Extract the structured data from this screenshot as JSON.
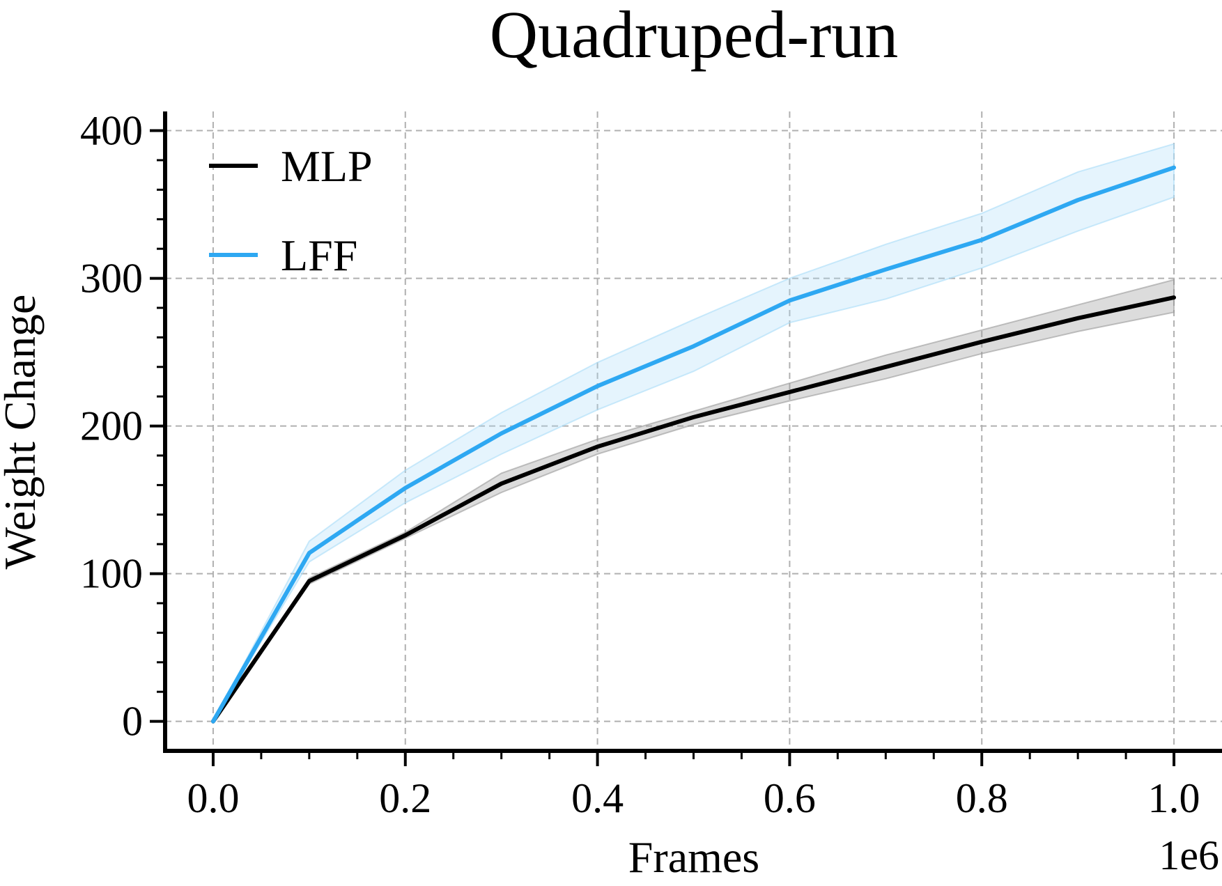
{
  "chart_data": {
    "type": "line",
    "title": "Quadruped-run",
    "xlabel": "Frames",
    "ylabel": "Weight Change",
    "x_offset_label": "1e6",
    "x": [
      0.0,
      0.1,
      0.2,
      0.3,
      0.4,
      0.5,
      0.6,
      0.7,
      0.8,
      0.9,
      1.0
    ],
    "xlim": [
      -0.05,
      1.05
    ],
    "ylim": [
      -20,
      413
    ],
    "xticks": [
      0.0,
      0.2,
      0.4,
      0.6,
      0.8,
      1.0
    ],
    "xtick_labels": [
      "0.0",
      "0.2",
      "0.4",
      "0.6",
      "0.8",
      "1.0"
    ],
    "yticks": [
      0,
      100,
      200,
      300,
      400
    ],
    "ytick_labels": [
      "0",
      "100",
      "200",
      "300",
      "400"
    ],
    "grid": true,
    "legend": "top-left",
    "series": [
      {
        "name": "MLP",
        "color": "#000000",
        "band_color": "#9a9a9a",
        "values": [
          0,
          95,
          126,
          161,
          186,
          206,
          223,
          240,
          257,
          273,
          287
        ],
        "lower": [
          0,
          93,
          124,
          155,
          181,
          201,
          217,
          232,
          249,
          264,
          277
        ],
        "upper": [
          0,
          97,
          128,
          168,
          191,
          210,
          229,
          248,
          265,
          282,
          299
        ]
      },
      {
        "name": "LFF",
        "color": "#2ea8f2",
        "band_color": "#a9dcf8",
        "values": [
          0,
          114,
          158,
          195,
          227,
          254,
          285,
          306,
          326,
          353,
          375
        ],
        "lower": [
          0,
          108,
          148,
          181,
          211,
          237,
          270,
          286,
          307,
          332,
          355
        ],
        "upper": [
          0,
          122,
          170,
          209,
          243,
          272,
          300,
          323,
          344,
          372,
          391
        ]
      }
    ]
  }
}
